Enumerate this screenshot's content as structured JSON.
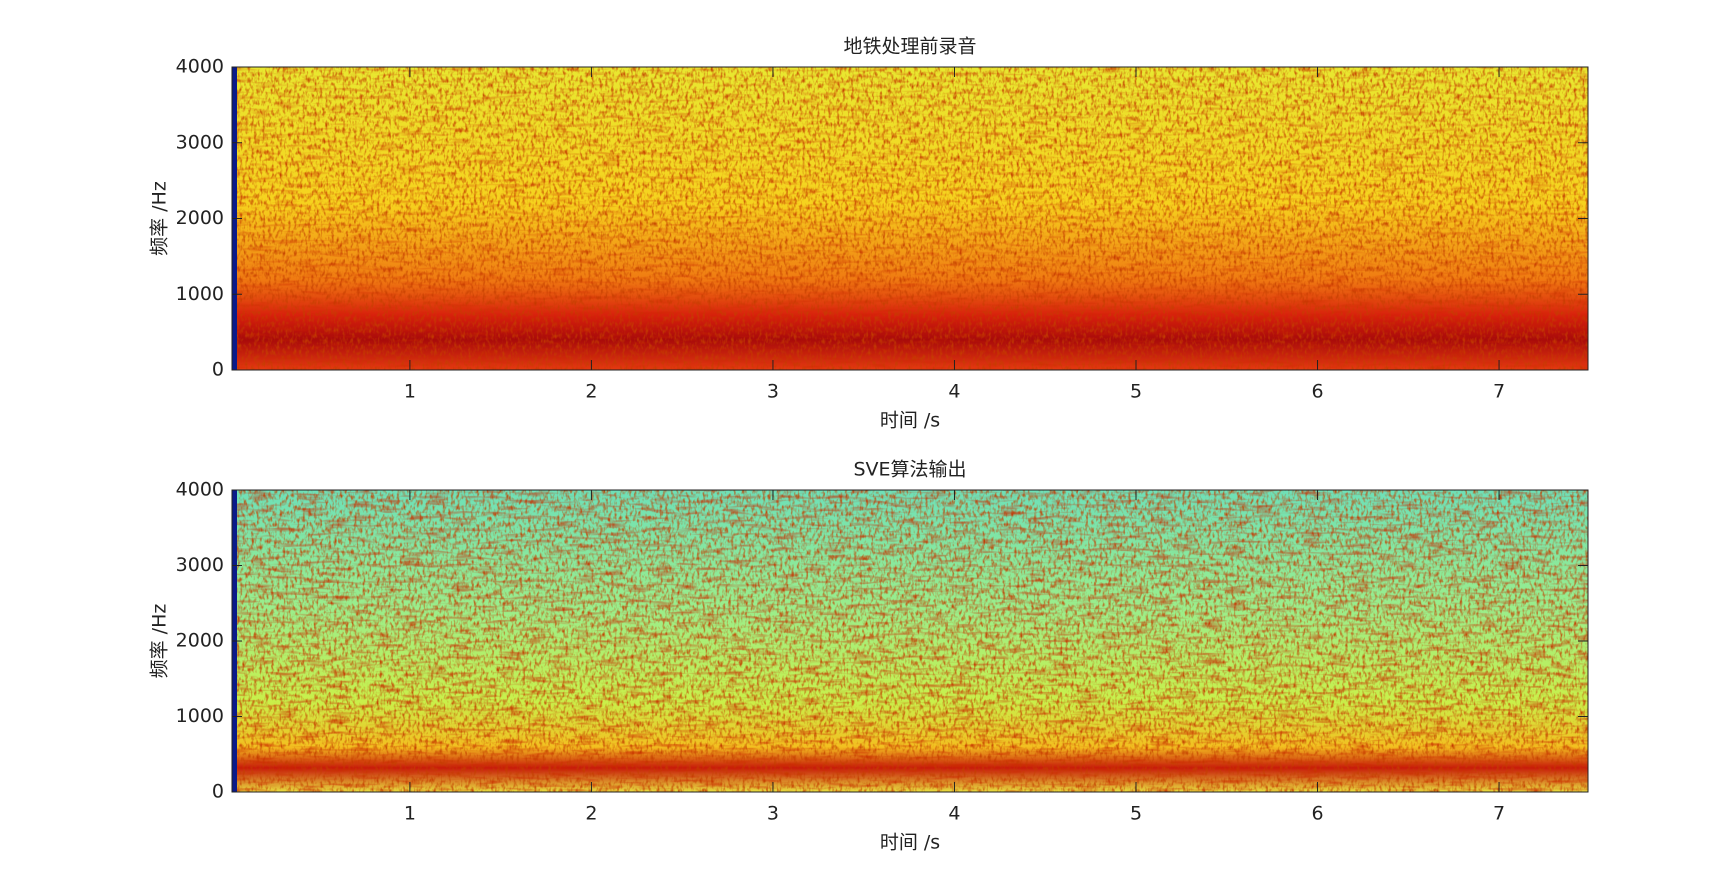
{
  "chart_data": [
    {
      "type": "spectrogram",
      "title": "地铁处理前录音",
      "xlabel": "时间 /s",
      "ylabel": "频率 /Hz",
      "xlim": [
        0.02,
        7.49
      ],
      "ylim": [
        0,
        4000
      ],
      "xticks": [
        1,
        2,
        3,
        4,
        5,
        6,
        7
      ],
      "yticks": [
        0,
        1000,
        2000,
        3000,
        4000
      ]
    },
    {
      "type": "spectrogram",
      "title": "SVE算法输出",
      "xlabel": "时间 /s",
      "ylabel": "频率 /Hz",
      "xlim": [
        0.02,
        7.49
      ],
      "ylim": [
        0,
        4000
      ],
      "xticks": [
        1,
        2,
        3,
        4,
        5,
        6,
        7
      ],
      "yticks": [
        0,
        1000,
        2000,
        3000,
        4000
      ]
    }
  ]
}
